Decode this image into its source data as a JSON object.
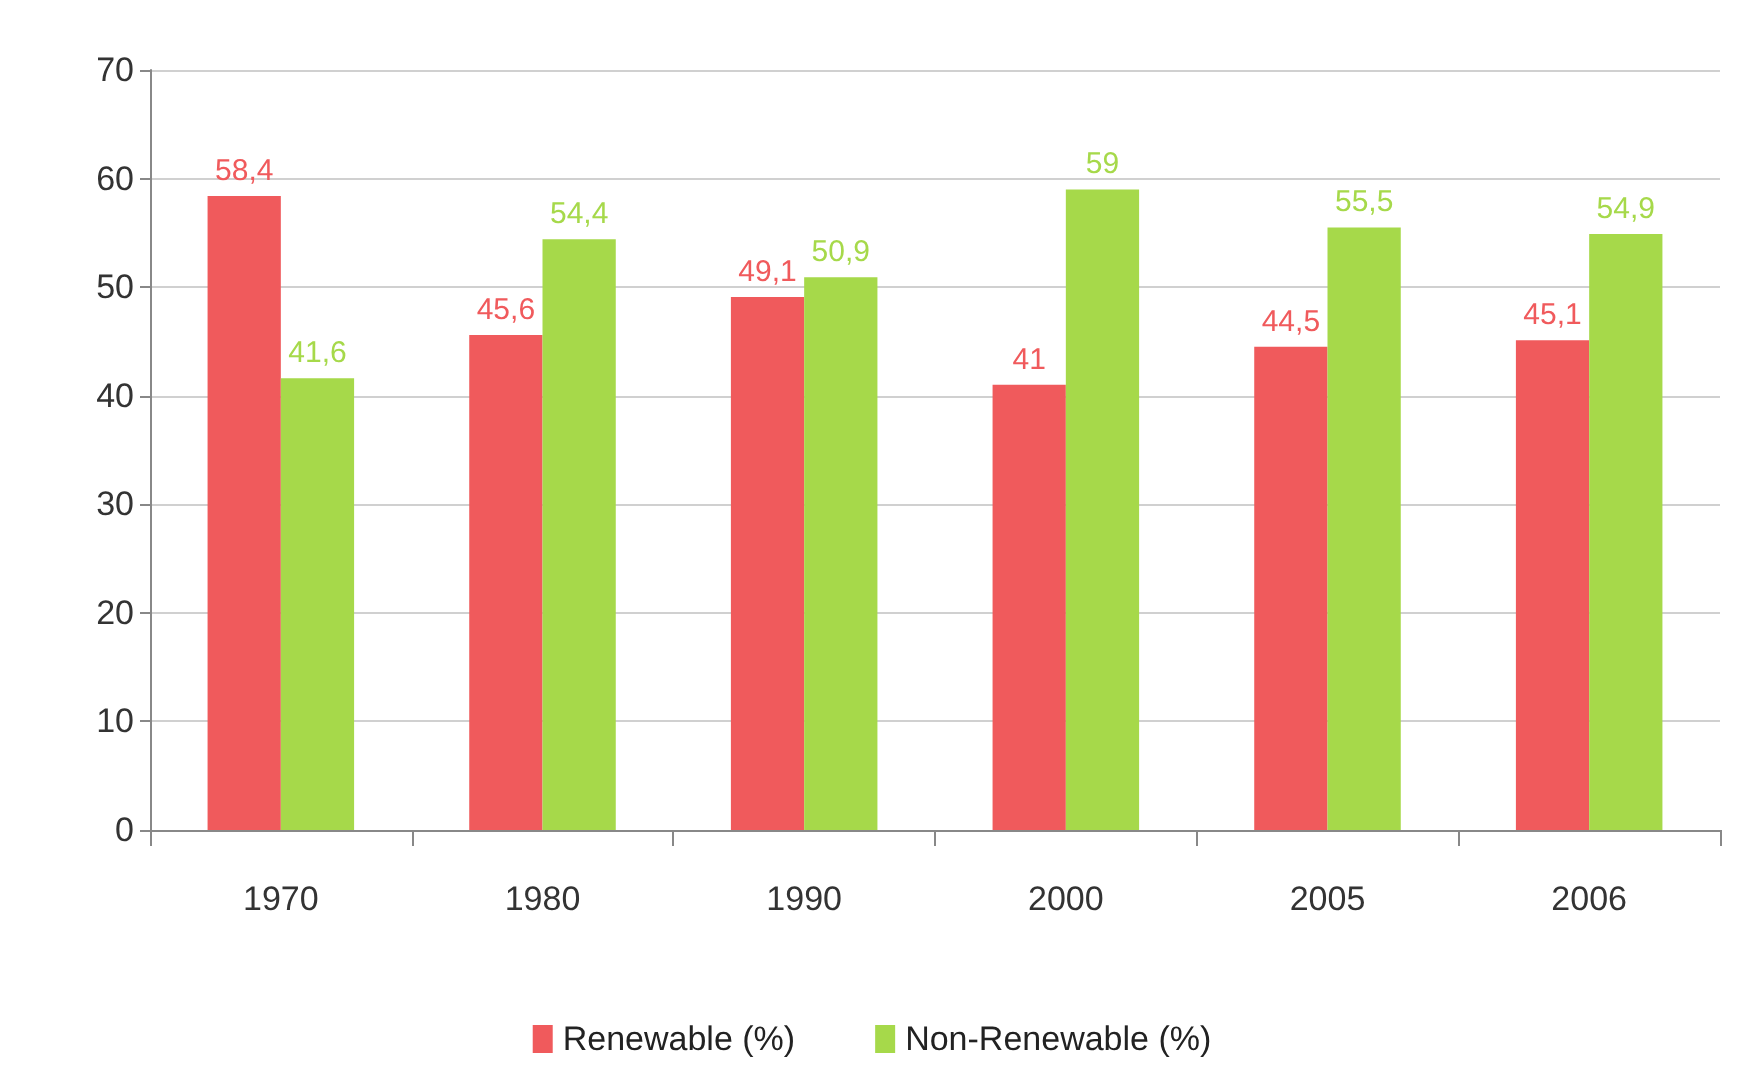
{
  "chart_data": {
    "type": "bar",
    "categories": [
      "1970",
      "1980",
      "1990",
      "2000",
      "2005",
      "2006"
    ],
    "series": [
      {
        "name": "Renewable (%)",
        "color": "#f05a5c",
        "values": [
          58.4,
          45.6,
          49.1,
          41,
          44.5,
          45.1
        ],
        "value_labels": [
          "58,4",
          "45,6",
          "49,1",
          "41",
          "44,5",
          "45,1"
        ]
      },
      {
        "name": "Non-Renewable (%)",
        "color": "#a6d94a",
        "values": [
          41.6,
          54.4,
          50.9,
          59,
          55.5,
          54.9
        ],
        "value_labels": [
          "41,6",
          "54,4",
          "50,9",
          "59",
          "55,5",
          "54,9"
        ]
      }
    ],
    "ylim": [
      0,
      70
    ],
    "yticks": [
      0,
      10,
      20,
      30,
      40,
      50,
      60,
      70
    ],
    "grid": "y",
    "legend": "bottom"
  }
}
